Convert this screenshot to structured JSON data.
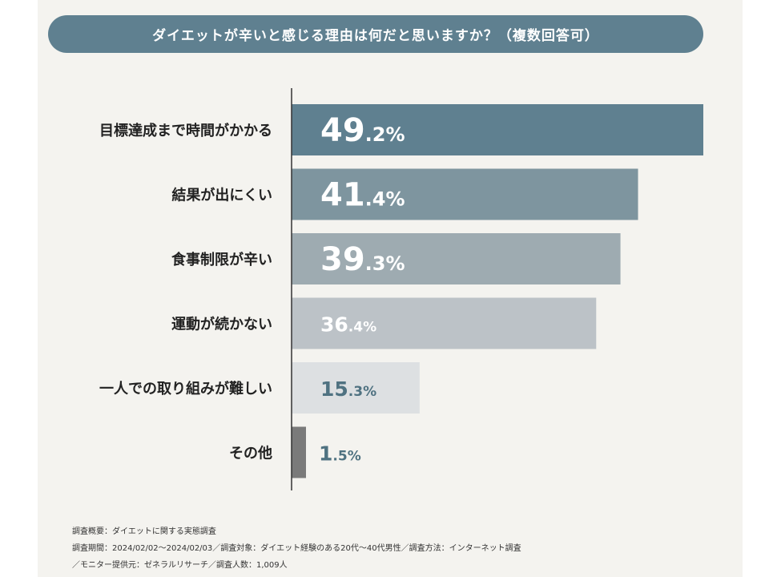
{
  "colors": {
    "title_background": "#5f8090",
    "bars": [
      "#5f8090",
      "#7e959f",
      "#9eabb1",
      "#bcc2c7",
      "#dde0e2",
      "#7a7a7a"
    ],
    "value_text_light": "#ffffff",
    "value_text_dark": "#4f7281",
    "axis": "#333333"
  },
  "chart_data": {
    "type": "bar",
    "orientation": "horizontal",
    "title": "ダイエットが辛いと感じる理由は何だと思いますか？（複数回答可）",
    "categories": [
      "目標達成まで時間がかかる",
      "結果が出にくい",
      "食事制限が辛い",
      "運動が続かない",
      "一人での取り組みが難しい",
      "その他"
    ],
    "values": [
      49.2,
      41.4,
      39.3,
      36.4,
      15.3,
      1.5
    ],
    "value_labels": [
      {
        "int": "49",
        "dec": ".2%"
      },
      {
        "int": "41",
        "dec": ".4%"
      },
      {
        "int": "39",
        "dec": ".3%"
      },
      {
        "int": "36",
        "dec": ".4%"
      },
      {
        "int": "15",
        "dec": ".3%"
      },
      {
        "int": "1",
        "dec": ".5%"
      }
    ],
    "unit": "%",
    "xlim": [
      0,
      50
    ],
    "grid": false,
    "legend": "none"
  },
  "notes": [
    "調査概要：ダイエットに関する実態調査",
    "調査期間：2024/02/02〜2024/02/03／調査対象：ダイエット経験のある20代〜40代男性／調査方法：インターネット調査",
    "／モニター提供元：ゼネラルリサーチ／調査人数：1,009人"
  ]
}
